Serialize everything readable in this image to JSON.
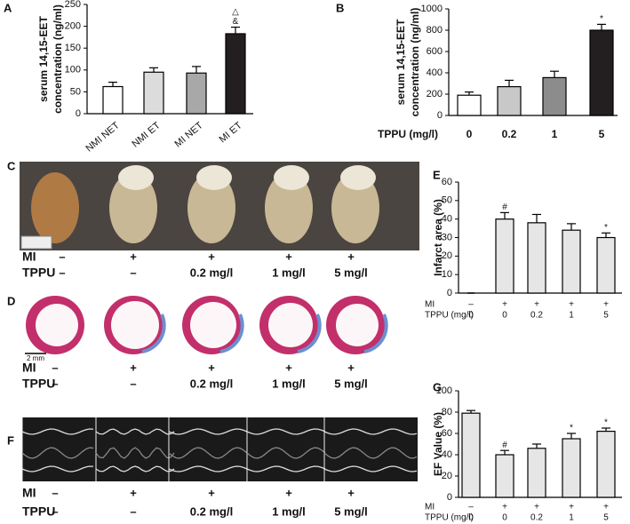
{
  "chart_data": [
    {
      "type": "bar",
      "panel": "A",
      "ylabel": [
        "serum 14,15-EET",
        "concentration (ng/ml)"
      ],
      "categories": [
        "NMI NET",
        "NMI ET",
        "MI NET",
        "MI ET"
      ],
      "values": [
        62,
        95,
        93,
        183
      ],
      "errors": [
        10,
        10,
        15,
        15
      ],
      "colors": [
        "#ffffff",
        "#dcdcdc",
        "#a8a8a8",
        "#231f20"
      ],
      "annotations": [
        null,
        null,
        null,
        [
          "△",
          "&"
        ]
      ],
      "ylim": [
        0,
        250
      ],
      "yticks": [
        0,
        50,
        100,
        150,
        200,
        250
      ]
    },
    {
      "type": "bar",
      "panel": "B",
      "ylabel": [
        "serum 14,15-EET",
        "concentration (ng/ml)"
      ],
      "xlabel": "TPPU (mg/l)",
      "categories": [
        "0",
        "0.2",
        "1",
        "5"
      ],
      "values": [
        190,
        270,
        355,
        800
      ],
      "errors": [
        30,
        60,
        60,
        55
      ],
      "colors": [
        "#ffffff",
        "#c8c8c8",
        "#8c8c8c",
        "#231f20"
      ],
      "annotations": [
        null,
        null,
        null,
        [
          "*"
        ]
      ],
      "ylim": [
        0,
        1000
      ],
      "yticks": [
        0,
        200,
        400,
        600,
        800,
        1000
      ]
    },
    {
      "type": "bar",
      "panel": "E",
      "ylabel": [
        "Infarct area (%)"
      ],
      "categories": [
        "0",
        "0",
        "0.2",
        "1",
        "5"
      ],
      "x_rows": [
        {
          "name": "MI",
          "labels": [
            "–",
            "+",
            "+",
            "+",
            "+"
          ]
        },
        {
          "name": "TPPU (mg/l)",
          "labels": [
            "0",
            "0",
            "0.2",
            "1",
            "5"
          ]
        }
      ],
      "values": [
        0,
        40,
        38,
        34,
        30
      ],
      "errors": [
        null,
        3.5,
        4.5,
        3.5,
        2.5
      ],
      "colors": [
        "#e6e6e6",
        "#e6e6e6",
        "#e6e6e6",
        "#e6e6e6",
        "#e6e6e6"
      ],
      "annotations": [
        null,
        [
          "#"
        ],
        null,
        null,
        [
          "*"
        ]
      ],
      "ylim": [
        0,
        60
      ],
      "yticks": [
        0,
        10,
        20,
        30,
        40,
        50,
        60
      ]
    },
    {
      "type": "bar",
      "panel": "G",
      "ylabel": [
        "EF Value (%)"
      ],
      "categories": [
        "0",
        "0",
        "0.2",
        "1",
        "5"
      ],
      "x_rows": [
        {
          "name": "MI",
          "labels": [
            "–",
            "+",
            "+",
            "+",
            "+"
          ]
        },
        {
          "name": "TPPU (mg/l)",
          "labels": [
            "0",
            "0",
            "0.2",
            "1",
            "5"
          ]
        }
      ],
      "values": [
        79,
        40,
        46,
        55,
        62
      ],
      "errors": [
        2.5,
        4,
        4,
        5,
        3
      ],
      "colors": [
        "#e6e6e6",
        "#e6e6e6",
        "#e6e6e6",
        "#e6e6e6",
        "#e6e6e6"
      ],
      "annotations": [
        null,
        [
          "#"
        ],
        null,
        [
          "*"
        ],
        [
          "*"
        ]
      ],
      "ylim": [
        0,
        100
      ],
      "yticks": [
        0,
        20,
        40,
        60,
        80,
        100
      ]
    }
  ],
  "image_panels": [
    {
      "panel": "C",
      "rows": [
        {
          "name": "MI",
          "labels": [
            "–",
            "+",
            "+",
            "+",
            "+"
          ]
        },
        {
          "name": "TPPU",
          "labels": [
            "–",
            "–",
            "0.2 mg/l",
            "1 mg/l",
            "5 mg/l"
          ]
        }
      ]
    },
    {
      "panel": "D",
      "scale_bar": "2 mm",
      "rows": [
        {
          "name": "MI",
          "labels": [
            "–",
            "+",
            "+",
            "+",
            "+"
          ]
        },
        {
          "name": "TPPU",
          "labels": [
            "–",
            "–",
            "0.2 mg/l",
            "1 mg/l",
            "5 mg/l"
          ]
        }
      ]
    },
    {
      "panel": "F",
      "rows": [
        {
          "name": "MI",
          "labels": [
            "–",
            "+",
            "+",
            "+",
            "+"
          ]
        },
        {
          "name": "TPPU",
          "labels": [
            "–",
            "–",
            "0.2 mg/l",
            "1 mg/l",
            "5 mg/l"
          ]
        }
      ]
    }
  ]
}
